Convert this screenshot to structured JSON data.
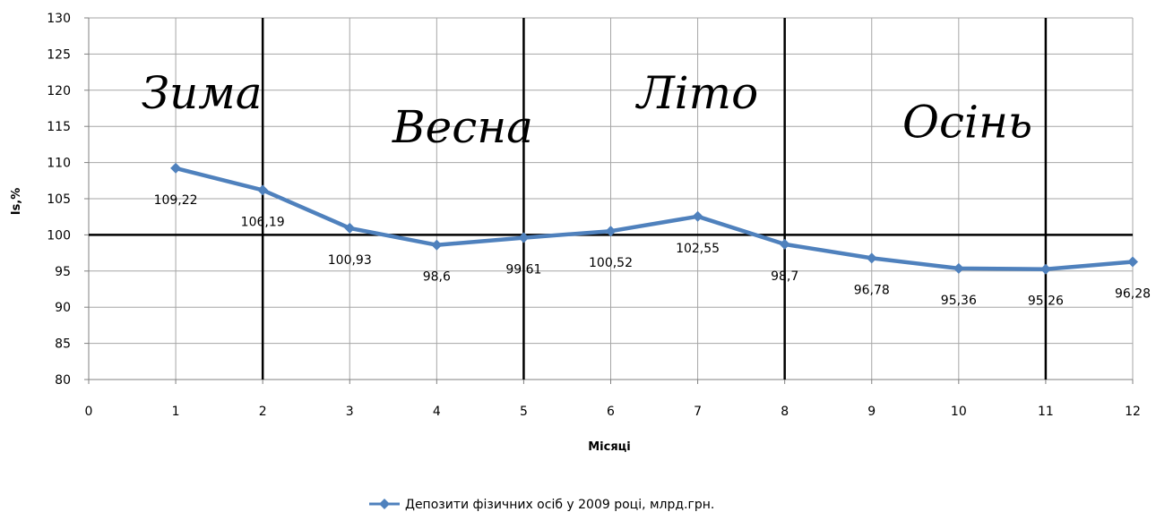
{
  "chart_data": {
    "type": "line",
    "title": "",
    "xlabel": "Місяці",
    "ylabel": "Is,%",
    "xlim": [
      0,
      12
    ],
    "ylim": [
      80,
      130
    ],
    "x_ticks": [
      0,
      1,
      2,
      3,
      4,
      5,
      6,
      7,
      8,
      9,
      10,
      11,
      12
    ],
    "y_ticks": [
      80,
      85,
      90,
      95,
      100,
      105,
      110,
      115,
      120,
      125,
      130
    ],
    "grid": true,
    "legend_position": "bottom",
    "series": [
      {
        "name": "Депозити фізичних  осіб у 2009 році, млрд.грн.",
        "color": "#4f81bd",
        "marker": "diamond",
        "x": [
          1,
          2,
          3,
          4,
          5,
          6,
          7,
          8,
          9,
          10,
          11,
          12
        ],
        "y": [
          109.22,
          106.19,
          100.93,
          98.6,
          99.61,
          100.52,
          102.55,
          98.7,
          96.78,
          95.36,
          95.26,
          96.28
        ],
        "labels": [
          "109,22",
          "106,19",
          "100,93",
          "98,6",
          "99,61",
          "100,52",
          "102,55",
          "98,7",
          "96,78",
          "95,36",
          "95,26",
          "96,28"
        ]
      }
    ],
    "reference_lines": {
      "horizontal_y": [
        100
      ],
      "vertical_x": [
        2,
        5,
        8,
        11
      ]
    },
    "annotations": [
      {
        "text": "Зима",
        "x": 1.3,
        "y": 117.5
      },
      {
        "text": "Весна",
        "x": 4.3,
        "y": 112.8
      },
      {
        "text": "Літо",
        "x": 7.0,
        "y": 117.5
      },
      {
        "text": "Осінь",
        "x": 10.1,
        "y": 113.5
      }
    ]
  }
}
